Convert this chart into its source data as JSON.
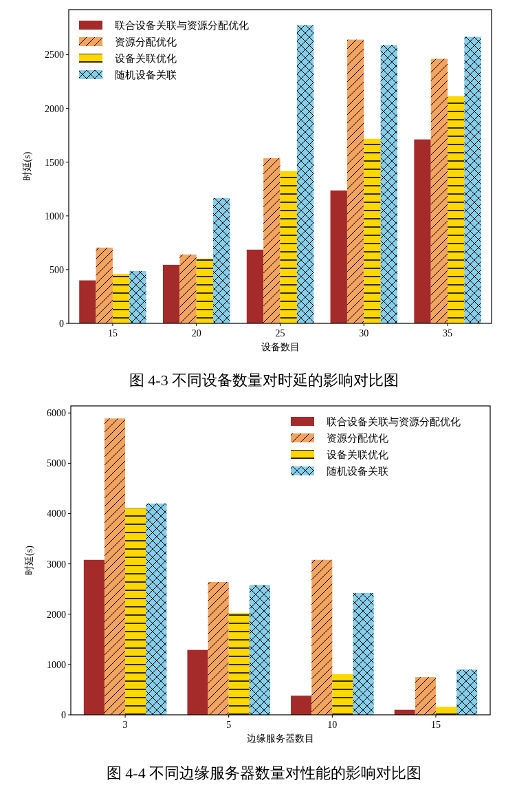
{
  "chart_data": [
    {
      "type": "bar",
      "title": "图 4-3 不同设备数量对时延的影响对比图",
      "xlabel": "设备数目",
      "ylabel": "时延(s)",
      "categories": [
        "15",
        "20",
        "25",
        "30",
        "35"
      ],
      "series": [
        {
          "name": "联合设备关联与资源分配优化",
          "color": "#a52a2a",
          "values": [
            400,
            545,
            686,
            1237,
            1712
          ]
        },
        {
          "name": "资源分配优化",
          "color": "#f4a460",
          "values": [
            705,
            641,
            1538,
            2641,
            2462
          ]
        },
        {
          "name": "设备关联优化",
          "color": "#ffd700",
          "values": [
            461,
            603,
            1417,
            1718,
            2115
          ]
        },
        {
          "name": "随机设备关联",
          "color": "#87ceeb",
          "values": [
            487,
            1167,
            2776,
            2590,
            2667
          ]
        }
      ],
      "ylim": [
        0,
        2920
      ],
      "yticks": [
        0,
        500,
        1000,
        1500,
        2000,
        2500
      ],
      "legend": "top left"
    },
    {
      "type": "bar",
      "title": "图 4-4 不同边缘服务器数量对性能的影响对比图",
      "xlabel": "边缘服务器数目",
      "ylabel": "时延(s)",
      "categories": [
        "3",
        "5",
        "10",
        "15"
      ],
      "series": [
        {
          "name": "联合设备关联与资源分配优化",
          "color": "#a52a2a",
          "values": [
            3080,
            1290,
            380,
            100
          ]
        },
        {
          "name": "资源分配优化",
          "color": "#f4a460",
          "values": [
            5890,
            2640,
            3080,
            750
          ]
        },
        {
          "name": "设备关联优化",
          "color": "#ffd700",
          "values": [
            4110,
            2020,
            810,
            160
          ]
        },
        {
          "name": "随机设备关联",
          "color": "#87ceeb",
          "values": [
            4200,
            2580,
            2420,
            900
          ]
        }
      ],
      "ylim": [
        0,
        6140
      ],
      "yticks": [
        0,
        1000,
        2000,
        3000,
        4000,
        5000,
        6000
      ],
      "legend": "top right"
    }
  ]
}
